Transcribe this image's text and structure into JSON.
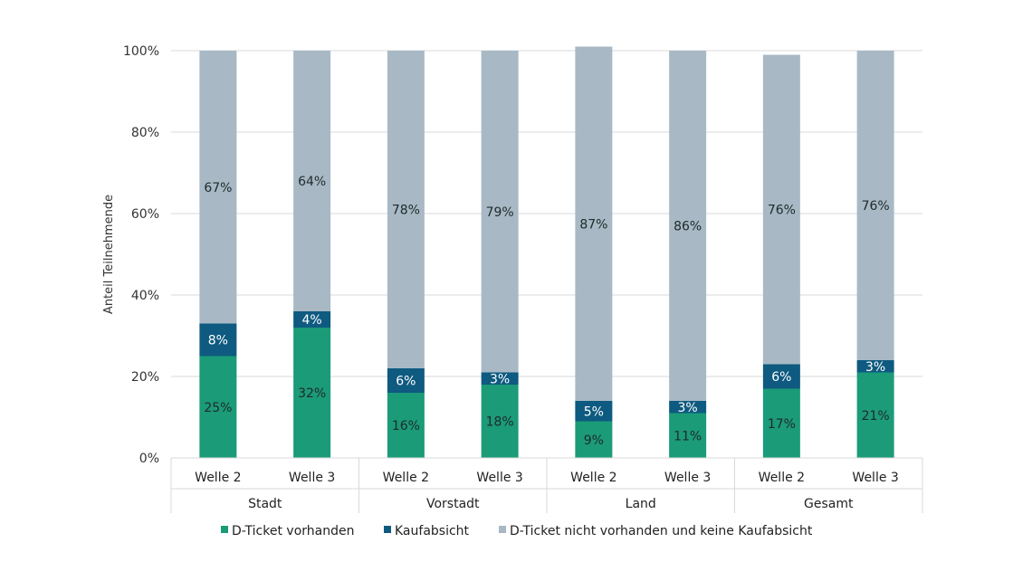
{
  "chart_data": {
    "type": "bar",
    "stacked": true,
    "ylabel": "Anteil Teilnehmende",
    "ylim": [
      0,
      100
    ],
    "yticks": [
      "0%",
      "20%",
      "40%",
      "60%",
      "80%",
      "100%"
    ],
    "groups": [
      {
        "label": "Stadt",
        "waves": [
          "Welle 2",
          "Welle 3"
        ]
      },
      {
        "label": "Vorstadt",
        "waves": [
          "Welle 2",
          "Welle 3"
        ]
      },
      {
        "label": "Land",
        "waves": [
          "Welle 2",
          "Welle 3"
        ]
      },
      {
        "label": "Gesamt",
        "waves": [
          "Welle 2",
          "Welle 3"
        ]
      }
    ],
    "series": [
      {
        "name": "D-Ticket vorhanden",
        "color": "#1b9b78",
        "values": [
          25,
          32,
          16,
          18,
          9,
          11,
          17,
          21
        ],
        "labels": [
          "25%",
          "32%",
          "16%",
          "18%",
          "9%",
          "11%",
          "17%",
          "21%"
        ],
        "label_color": "#1f2a2a"
      },
      {
        "name": "Kaufabsicht",
        "color": "#0e5a80",
        "values": [
          8,
          4,
          6,
          3,
          5,
          3,
          6,
          3
        ],
        "labels": [
          "8%",
          "4%",
          "6%",
          "3%",
          "5%",
          "3%",
          "6%",
          "3%"
        ],
        "label_color": "#ffffff"
      },
      {
        "name": "D-Ticket nicht vorhanden und keine Kaufabsicht",
        "color": "#a8b9c5",
        "values": [
          67,
          64,
          78,
          79,
          87,
          86,
          76,
          76
        ],
        "labels": [
          "67%",
          "64%",
          "78%",
          "79%",
          "87%",
          "86%",
          "76%",
          "76%"
        ],
        "label_color": "#1f2a2a"
      }
    ],
    "grid": true,
    "legend": "bottom"
  }
}
